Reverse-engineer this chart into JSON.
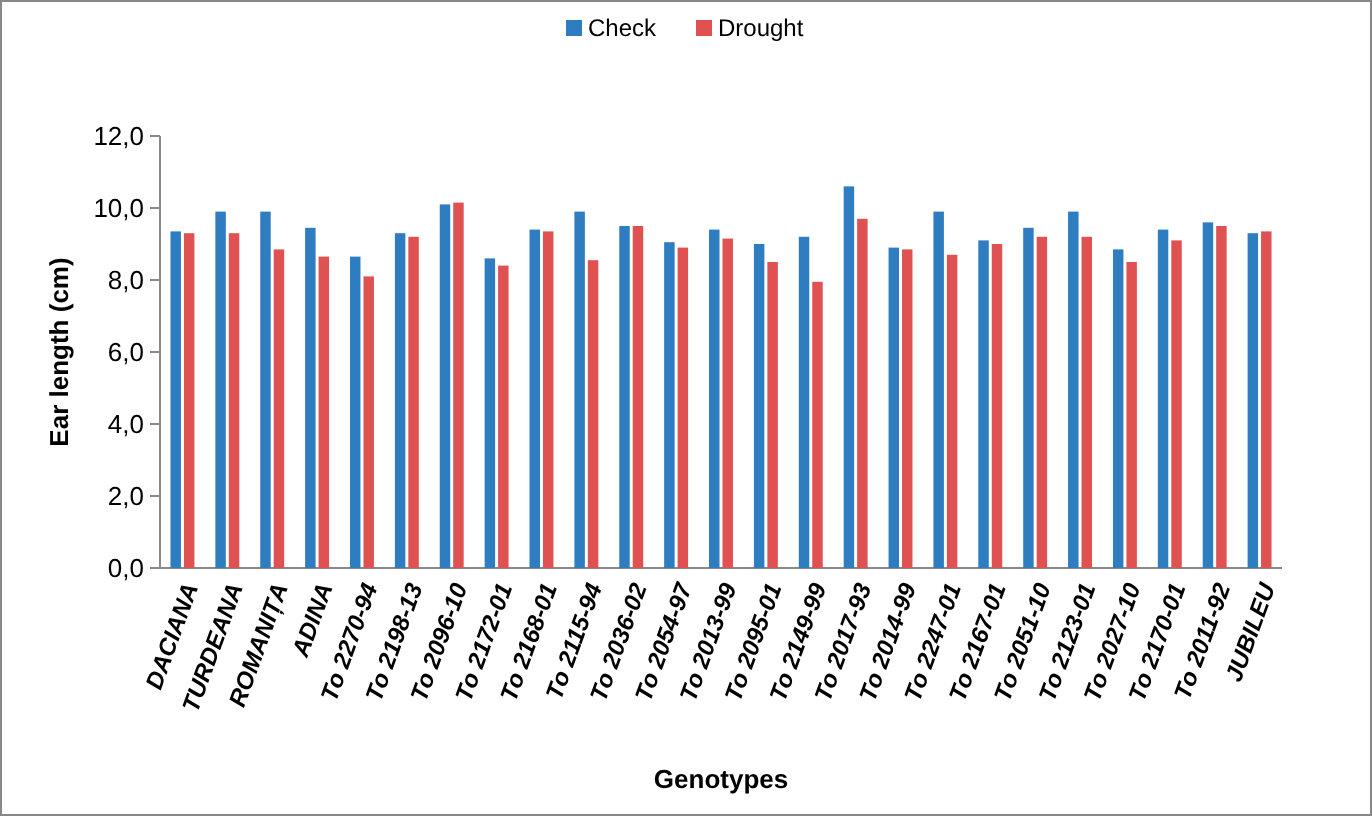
{
  "chart_data": {
    "type": "bar",
    "xlabel": "Genotypes",
    "ylabel": "Ear length (cm)",
    "categories": [
      "DACIANA",
      "TURDEANA",
      "ROMANIȚA",
      "ADINA",
      "To 2270-94",
      "To 2198-13",
      "To 2096-10",
      "To 2172-01",
      "To 2168-01",
      "To 2115-94",
      "To 2036-02",
      "To 2054-97",
      "To 2013-99",
      "To 2095-01",
      "To 2149-99",
      "To 2017-93",
      "To 2014-99",
      "To 2247-01",
      "To 2167-01",
      "To 2051-10",
      "To 2123-01",
      "To 2027-10",
      "To 2170-01",
      "To 2011-92",
      "JUBILEU"
    ],
    "series": [
      {
        "name": "Check",
        "color": "#2e7dc0",
        "values": [
          9.35,
          9.9,
          9.9,
          9.45,
          8.65,
          9.3,
          10.1,
          8.6,
          9.4,
          9.9,
          9.5,
          9.05,
          9.4,
          9.0,
          9.2,
          10.6,
          8.9,
          9.9,
          9.1,
          9.45,
          9.9,
          8.85,
          9.4,
          9.6,
          9.3
        ]
      },
      {
        "name": "Drought",
        "color": "#e05252",
        "values": [
          9.3,
          9.3,
          8.85,
          8.65,
          8.1,
          9.2,
          10.15,
          8.4,
          9.35,
          8.55,
          9.5,
          8.9,
          9.15,
          8.5,
          7.95,
          9.7,
          8.85,
          8.7,
          9.0,
          9.2,
          9.2,
          8.5,
          9.1,
          9.5,
          9.35
        ]
      }
    ],
    "ylim": [
      0,
      12
    ],
    "yticks": [
      {
        "value": 0,
        "label": "0,0"
      },
      {
        "value": 2,
        "label": "2,0"
      },
      {
        "value": 4,
        "label": "4,0"
      },
      {
        "value": 6,
        "label": "6,0"
      },
      {
        "value": 8,
        "label": "8,0"
      },
      {
        "value": 10,
        "label": "10,0"
      },
      {
        "value": 12,
        "label": "12,0"
      }
    ],
    "grid": false,
    "legend": "top"
  }
}
